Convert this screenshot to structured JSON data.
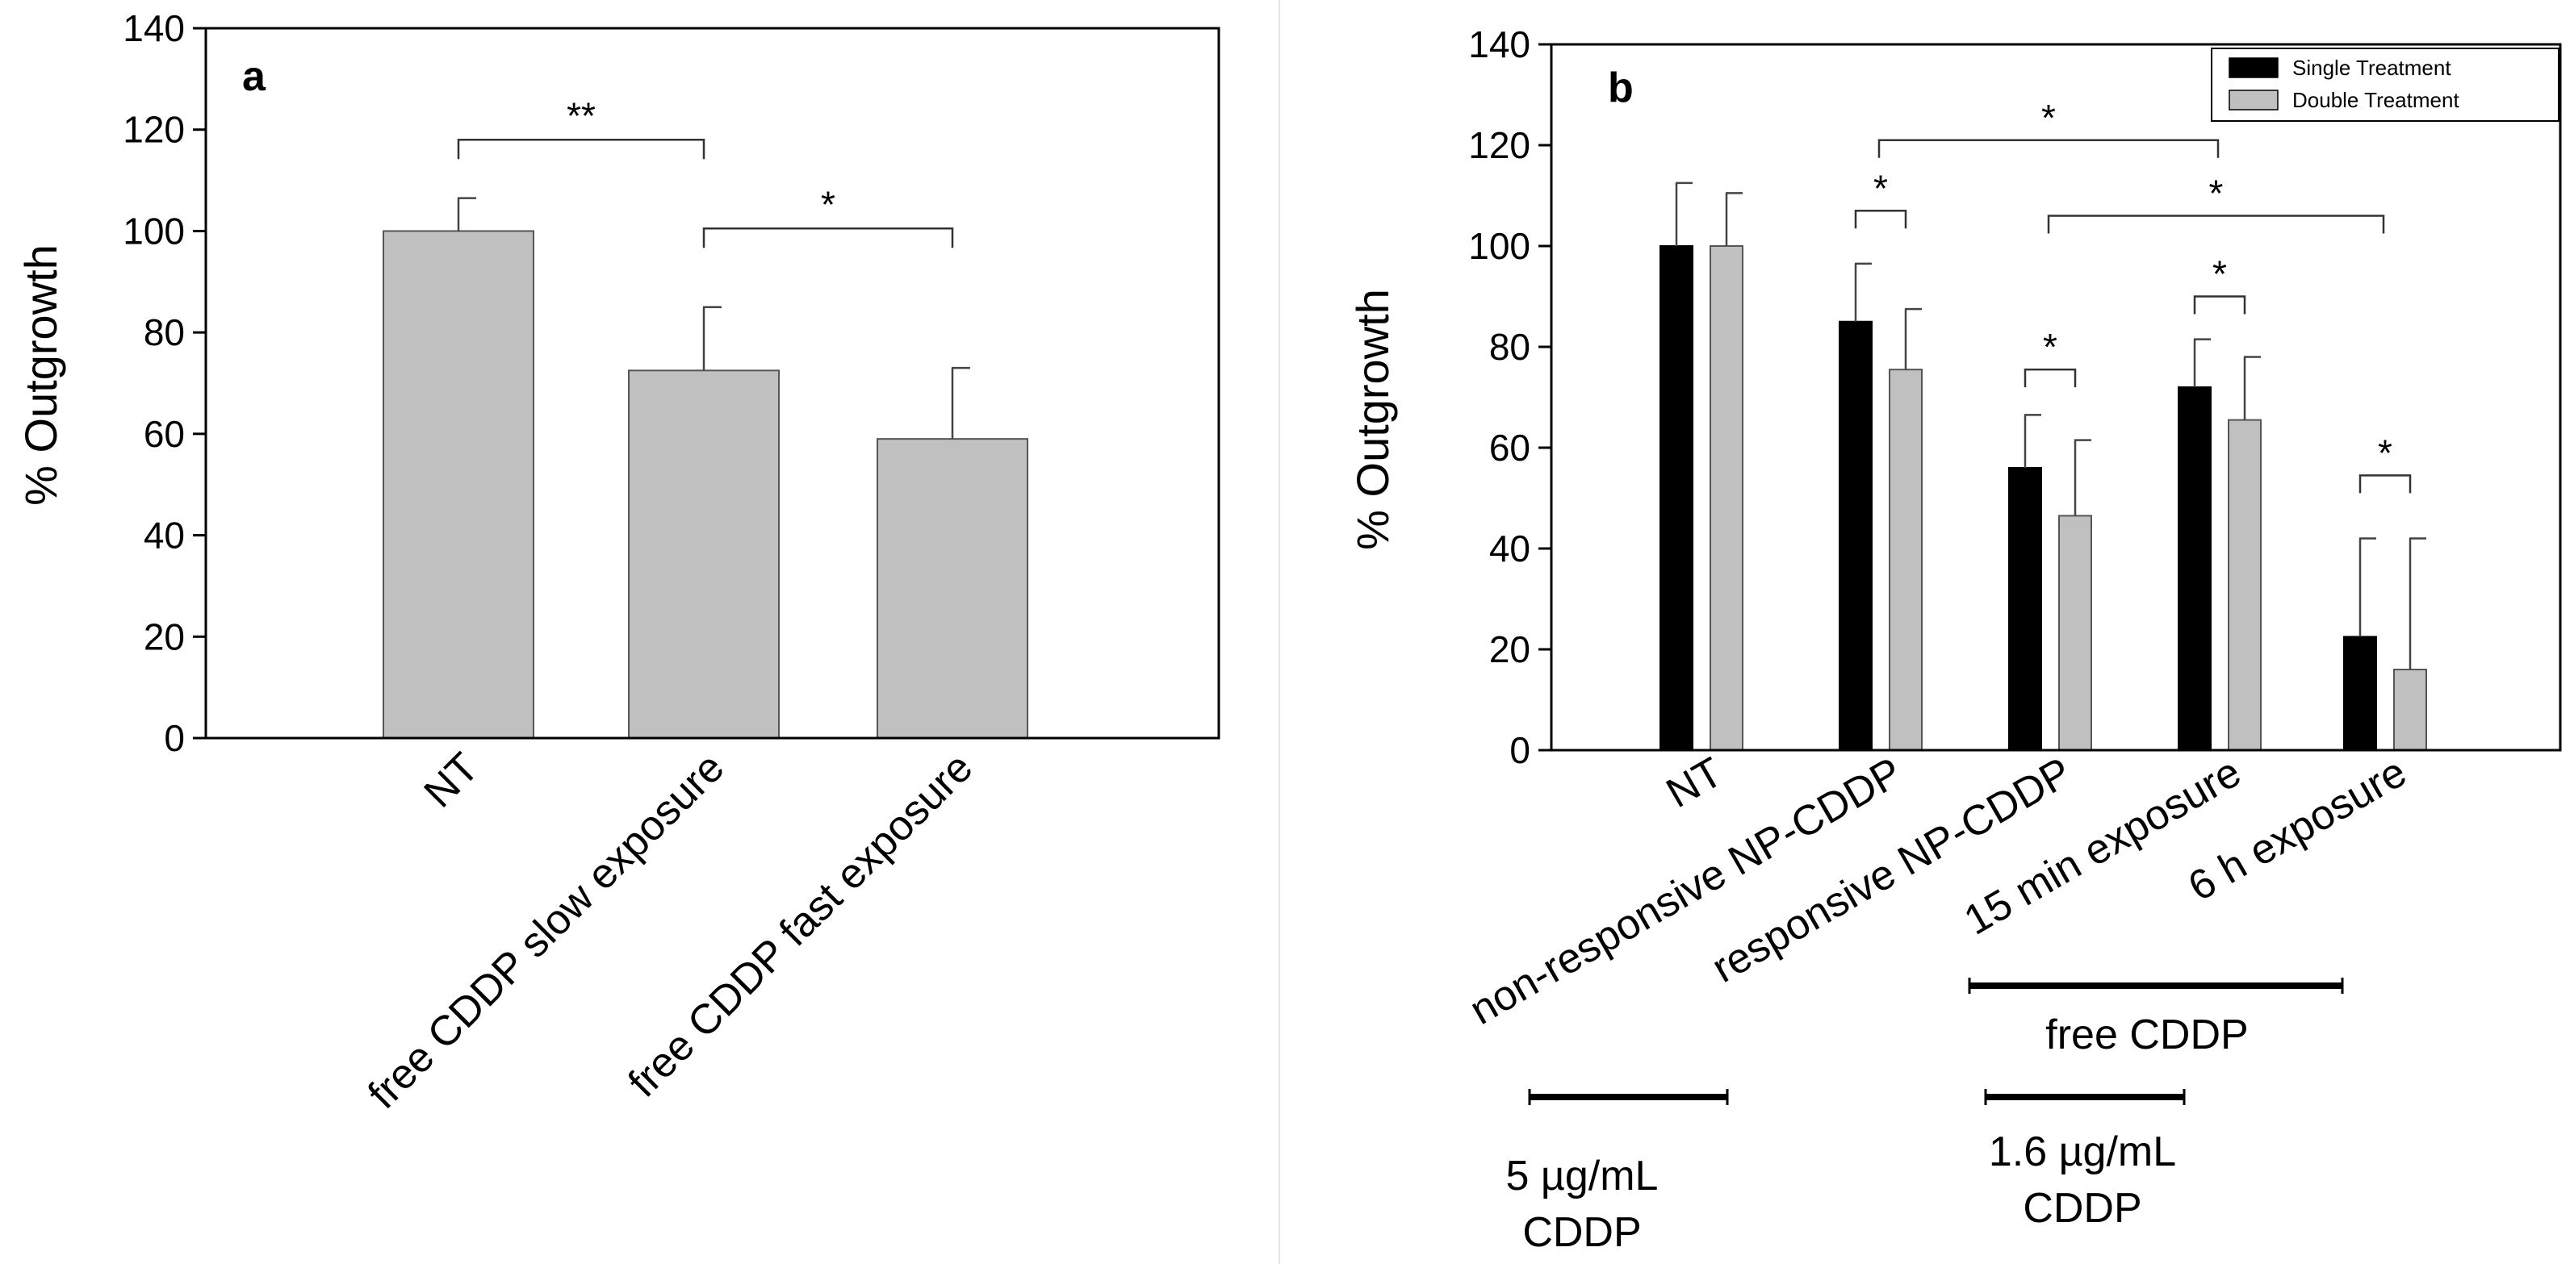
{
  "colors": {
    "grey_bar": "#c0c0c0",
    "black_bar": "#000000",
    "axis": "#000000"
  },
  "chart_data": [
    {
      "type": "bar",
      "panel": "a",
      "ylabel": "% Outgrowth",
      "ylim": [
        0,
        140
      ],
      "yticks": [
        0,
        20,
        40,
        60,
        80,
        100,
        120,
        140
      ],
      "categories": [
        "NT",
        "free CDDP slow exposure",
        "free CDDP fast exposure"
      ],
      "values": [
        100,
        72.5,
        59
      ],
      "errors": [
        6.5,
        12.5,
        14
      ],
      "significance": [
        {
          "from": 0,
          "to": 1,
          "label": "**",
          "y": 118
        },
        {
          "from": 1,
          "to": 2,
          "label": "*",
          "y": 100.5
        }
      ]
    },
    {
      "type": "bar",
      "panel": "b",
      "ylabel": "% Outgrowth",
      "ylim": [
        0,
        140
      ],
      "yticks": [
        0,
        20,
        40,
        60,
        80,
        100,
        120,
        140
      ],
      "categories": [
        "NT",
        "non-responsive NP-CDDP",
        "responsive NP-CDDP",
        "15 min exposure",
        "6 h exposure"
      ],
      "series": [
        {
          "name": "Single Treatment",
          "values": [
            100,
            85,
            56,
            72,
            22.5
          ],
          "errors": [
            12.5,
            11.5,
            10.5,
            9.5,
            19.5
          ]
        },
        {
          "name": "Double Treatment",
          "values": [
            100,
            75.5,
            46.5,
            65.5,
            16
          ],
          "errors": [
            10.5,
            12,
            15,
            12.5,
            26
          ]
        }
      ],
      "legend": "top-right",
      "significance": [
        {
          "from": 1,
          "to": 3,
          "label": "*",
          "y": 121
        },
        {
          "from": 2,
          "to": 4,
          "label": "*",
          "y": 106
        },
        {
          "group": 1,
          "label": "*",
          "y": 107
        },
        {
          "group": 2,
          "label": "*",
          "y": 75.5
        },
        {
          "group": 3,
          "label": "*",
          "y": 90
        },
        {
          "group": 4,
          "label": "*",
          "y": 54.5
        }
      ],
      "groups": [
        {
          "label": "free CDDP",
          "from": 3,
          "to": 4
        },
        {
          "label": "5 µg/mL\nCDDP",
          "under": 1
        },
        {
          "label": "1.6 µg/mL\nCDDP",
          "under": 2
        }
      ]
    }
  ]
}
